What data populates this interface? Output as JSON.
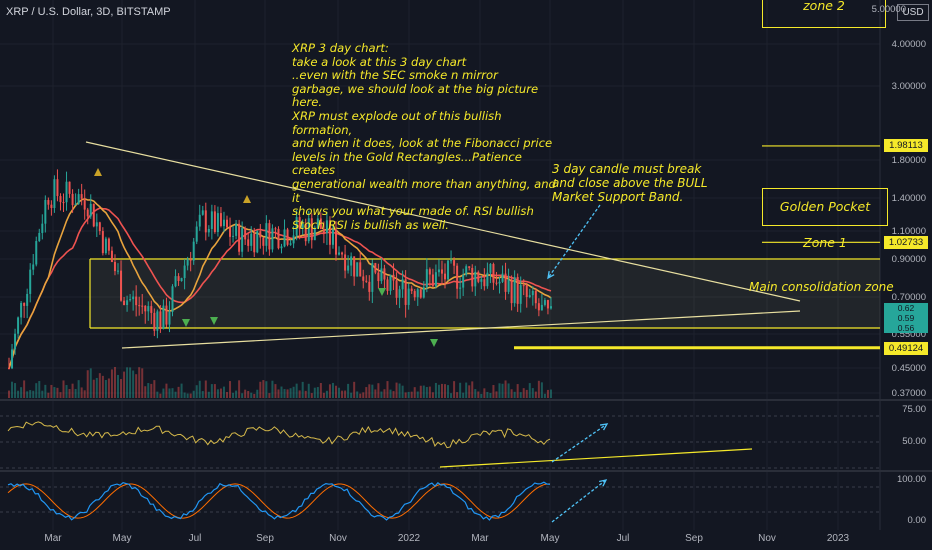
{
  "header": {
    "title": "XRP / U.S. Dollar, 3D, BITSTAMP",
    "currency": "USD"
  },
  "notes": {
    "main": [
      "XRP 3 day chart:",
      "take a look at this 3 day chart",
      "..even with the SEC smoke n mirror",
      "garbage, we should look at the big picture here.",
      "XRP must explode out of this bullish formation,",
      "and when it does, look at the Fibonacci price",
      "levels in the Gold Rectangles...Patience creates",
      "generational wealth more than anything, and it",
      "shows you what your made of. RSI bullish",
      "Stoch RSI is bullish as well."
    ],
    "candle": [
      "3 day candle must break",
      "and close above the BULL",
      "Market Support Band."
    ],
    "consolidation": "Main consolidation zone"
  },
  "zones": {
    "zone2": "zone 2",
    "golden_pocket": "Golden Pocket Zone 1"
  },
  "price_axis": {
    "labels": [
      "5.00000",
      "4.00000",
      "3.00000",
      "1.80000",
      "1.40000",
      "1.10000",
      "0.90000",
      "0.70000",
      "0.55000",
      "0.45000",
      "0.37000"
    ]
  },
  "price_tags": {
    "p1": "1.98113",
    "p2": "1.02733",
    "p3": "0.49124",
    "current": [
      "0.62",
      "0.59",
      "0.56"
    ]
  },
  "rsi_axis": [
    "75.00",
    "50.00"
  ],
  "stoch_axis": [
    "100.00",
    "0.00"
  ],
  "x_axis": [
    "Mar",
    "May",
    "Jul",
    "Sep",
    "Nov",
    "2022",
    "Mar",
    "May",
    "Jul",
    "Sep",
    "Nov",
    "2023"
  ],
  "colors": {
    "bg": "#131722",
    "up": "#26a69a",
    "down": "#ef5350",
    "annotation": "#f5e92a",
    "arrow": "#4fc3f7",
    "rsi": "#d4b84a",
    "stoch_k": "#2196f3",
    "stoch_d": "#ff6d00"
  },
  "chart_data": {
    "type": "candlestick",
    "title": "XRP / U.S. Dollar, 3D, BITSTAMP",
    "price_scale": "log",
    "ylim": [
      0.37,
      5.0
    ],
    "close_path": [
      [
        "Mar 2021",
        0.45
      ],
      [
        "Apr 2021",
        1.45
      ],
      [
        "May 2021",
        1.4
      ],
      [
        "Jun 2021",
        0.7
      ],
      [
        "Jul 2021",
        0.6
      ],
      [
        "Aug 2021",
        1.2
      ],
      [
        "Sep 2021",
        1.05
      ],
      [
        "Oct 2021",
        1.1
      ],
      [
        "Nov 2021",
        1.15
      ],
      [
        "Dec 2021",
        0.85
      ],
      [
        "Jan 2022",
        0.72
      ],
      [
        "Feb 2022",
        0.8
      ],
      [
        "Mar 2022",
        0.82
      ],
      [
        "Apr 2022",
        0.75
      ],
      [
        "May 2022",
        0.6
      ]
    ],
    "horizontal_levels": [
      1.98113,
      1.02733,
      0.9,
      0.55,
      0.49124
    ],
    "indicators": [
      "RSI",
      "Stoch RSI"
    ],
    "rsi_levels": [
      75,
      50
    ],
    "stoch_levels": [
      100,
      0
    ]
  }
}
